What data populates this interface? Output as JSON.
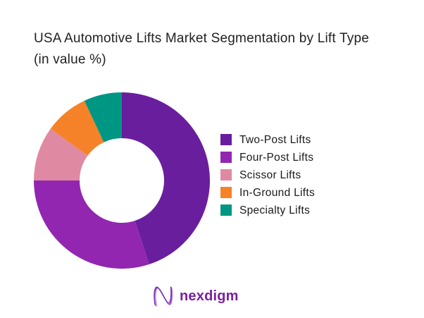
{
  "page": {
    "background": "#ffffff"
  },
  "chart_data": {
    "type": "pie",
    "variant": "donut",
    "title": "USA Automotive Lifts Market Segmentation by Lift Type",
    "subtitle": "(in value %)",
    "categories": [
      "Two-Post Lifts",
      "Four-Post Lifts",
      "Scissor Lifts",
      "In-Ground Lifts",
      "Specialty Lifts"
    ],
    "values": [
      45,
      30,
      10,
      8,
      7
    ],
    "colors": [
      "#691E9E",
      "#9226B1",
      "#E089A2",
      "#F58228",
      "#009684"
    ],
    "start_angle_deg": 0,
    "direction": "clockwise",
    "inner_radius_ratio": 0.48,
    "legend_position": "right",
    "data_labels_shown": false
  },
  "branding": {
    "logo_text": "nexdigm",
    "logo_color": "#7A1FA2",
    "logo_icon": "nexdigm-wave-n-icon"
  }
}
